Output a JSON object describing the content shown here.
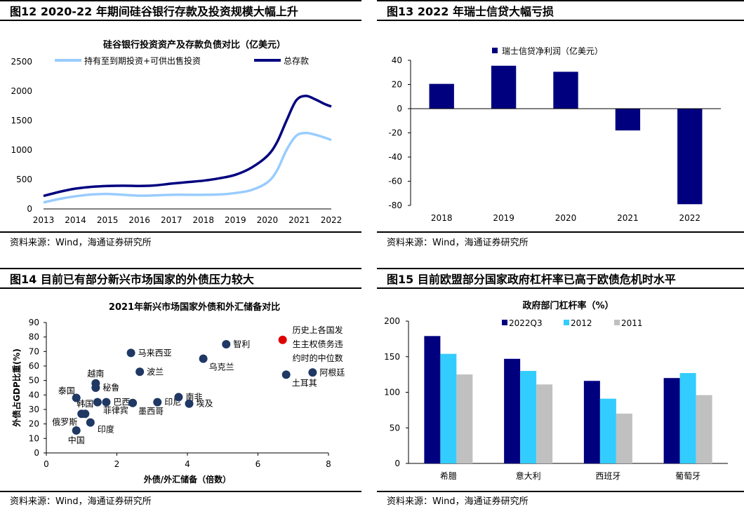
{
  "panels": [
    {
      "figure_title": "图12 2020-22 年期间硅谷银行存款及投资规模大幅上升",
      "source": "资料来源：Wind，海通证券研究所"
    },
    {
      "figure_title": "图13 2022 年瑞士信贷大幅亏损",
      "source": "资料来源：Wind，海通证券研究所"
    },
    {
      "figure_title": "图14 目前已有部分新兴市场国家的外债压力较大",
      "source": "资料来源：Wind，海通证券研究所"
    },
    {
      "figure_title": "图15 目前欧盟部分国家政府杠杆率已高于欧债危机时水平",
      "source": "资料来源：Wind，海通证券研究所"
    }
  ],
  "chart_data": [
    {
      "type": "line",
      "title": "硅谷银行投资资产及存款负债对比（亿美元）",
      "x": [
        2013,
        2014,
        2015,
        2016,
        2017,
        2018,
        2019,
        2020,
        2021,
        2022
      ],
      "xticks": [
        "2013",
        "2014",
        "2015",
        "2016",
        "2017",
        "2018",
        "2019",
        "2020",
        "2021",
        "2022"
      ],
      "ylim": [
        0,
        2500
      ],
      "yticks": [
        "0",
        "500",
        "1000",
        "1500",
        "2000",
        "2500"
      ],
      "series": [
        {
          "name": "持有至到期投资+可供出售投资",
          "color": "#99ccff",
          "points": [
            [
              2013,
              110
            ],
            [
              2013.5,
              170
            ],
            [
              2014,
              215
            ],
            [
              2014.5,
              245
            ],
            [
              2015,
              255
            ],
            [
              2015.5,
              240
            ],
            [
              2016,
              225
            ],
            [
              2016.5,
              230
            ],
            [
              2017,
              240
            ],
            [
              2017.5,
              240
            ],
            [
              2018,
              240
            ],
            [
              2018.5,
              245
            ],
            [
              2019,
              270
            ],
            [
              2019.5,
              320
            ],
            [
              2020,
              450
            ],
            [
              2020.3,
              650
            ],
            [
              2020.6,
              1000
            ],
            [
              2020.9,
              1240
            ],
            [
              2021.2,
              1290
            ],
            [
              2021.5,
              1260
            ],
            [
              2021.8,
              1210
            ],
            [
              2022,
              1170
            ]
          ]
        },
        {
          "name": "总存款",
          "color": "#00007f",
          "points": [
            [
              2013,
              220
            ],
            [
              2013.5,
              290
            ],
            [
              2014,
              345
            ],
            [
              2014.5,
              375
            ],
            [
              2015,
              390
            ],
            [
              2015.5,
              395
            ],
            [
              2016,
              390
            ],
            [
              2016.5,
              400
            ],
            [
              2017,
              430
            ],
            [
              2017.5,
              455
            ],
            [
              2018,
              480
            ],
            [
              2018.5,
              520
            ],
            [
              2019,
              580
            ],
            [
              2019.5,
              700
            ],
            [
              2020,
              900
            ],
            [
              2020.3,
              1130
            ],
            [
              2020.6,
              1500
            ],
            [
              2020.9,
              1840
            ],
            [
              2021.2,
              1920
            ],
            [
              2021.5,
              1860
            ],
            [
              2021.8,
              1780
            ],
            [
              2022,
              1740
            ]
          ]
        }
      ]
    },
    {
      "type": "bar",
      "title": "",
      "legend": "瑞士信贷净利润（亿美元）",
      "color": "#00007f",
      "categories": [
        "2018",
        "2019",
        "2020",
        "2021",
        "2022"
      ],
      "values": [
        20.5,
        35.5,
        30.5,
        -18,
        -79
      ],
      "ylim": [
        -80,
        40
      ],
      "yticks": [
        "40",
        "20",
        "0",
        "-20",
        "-40",
        "-60",
        "-80"
      ]
    },
    {
      "type": "scatter",
      "title": "2021年新兴市场国家外债和外汇储备对比",
      "xlabel": "外债/外汇储备（倍数）",
      "ylabel": "外债占GDP比重(%)",
      "xlim": [
        0,
        8
      ],
      "ylim": [
        0,
        90
      ],
      "xticks": [
        "0",
        "2",
        "4",
        "6",
        "8"
      ],
      "yticks": [
        "0",
        "10",
        "20",
        "30",
        "40",
        "50",
        "60",
        "70",
        "80",
        "90"
      ],
      "points": [
        {
          "label": "中国",
          "x": 0.85,
          "y": 15.5,
          "color": "#1f3864",
          "anchor": "below"
        },
        {
          "label": "俄罗斯",
          "x": 1.0,
          "y": 27,
          "color": "#1f3864",
          "anchor": "left-below"
        },
        {
          "label": "韩国",
          "x": 1.1,
          "y": 27,
          "color": "#1f3864",
          "anchor": "above"
        },
        {
          "label": "印度",
          "x": 1.25,
          "y": 21,
          "color": "#1f3864",
          "anchor": "right-below"
        },
        {
          "label": "泰国",
          "x": 0.85,
          "y": 38,
          "color": "#1f3864",
          "anchor": "above-left"
        },
        {
          "label": "菲律宾",
          "x": 1.45,
          "y": 35,
          "color": "#1f3864",
          "anchor": "below-right"
        },
        {
          "label": "越南",
          "x": 1.4,
          "y": 48,
          "color": "#1f3864",
          "anchor": "above"
        },
        {
          "label": "秘鲁",
          "x": 1.4,
          "y": 45,
          "color": "#1f3864",
          "anchor": "right"
        },
        {
          "label": "巴西",
          "x": 1.7,
          "y": 35,
          "color": "#1f3864",
          "anchor": "right"
        },
        {
          "label": "墨西哥",
          "x": 2.45,
          "y": 34.5,
          "color": "#1f3864",
          "anchor": "below-right"
        },
        {
          "label": "印尼",
          "x": 3.15,
          "y": 35,
          "color": "#1f3864",
          "anchor": "right"
        },
        {
          "label": "马来西亚",
          "x": 2.4,
          "y": 69,
          "color": "#1f3864",
          "anchor": "right"
        },
        {
          "label": "波兰",
          "x": 2.65,
          "y": 56,
          "color": "#1f3864",
          "anchor": "right"
        },
        {
          "label": "南非",
          "x": 3.75,
          "y": 38.5,
          "color": "#1f3864",
          "anchor": "right"
        },
        {
          "label": "埃及",
          "x": 4.05,
          "y": 34,
          "color": "#1f3864",
          "anchor": "right"
        },
        {
          "label": "乌克兰",
          "x": 4.45,
          "y": 65,
          "color": "#1f3864",
          "anchor": "below-right"
        },
        {
          "label": "智利",
          "x": 5.1,
          "y": 75,
          "color": "#1f3864",
          "anchor": "right"
        },
        {
          "label": "阿根廷",
          "x": 7.55,
          "y": 55.5,
          "color": "#1f3864",
          "anchor": "right"
        },
        {
          "label": "土耳其",
          "x": 6.8,
          "y": 54,
          "color": "#1f3864",
          "anchor": "below-right"
        },
        {
          "label": "历史上各国发生主权债务违约时的中位数",
          "x": 6.7,
          "y": 78,
          "color": "#e00000",
          "anchor": "annotation"
        }
      ],
      "annotation_lines": [
        "历史上各国发",
        "生主权债务违",
        "约时的中位数"
      ]
    },
    {
      "type": "bar",
      "title": "政府部门杠杆率（%）",
      "categories": [
        "希腊",
        "意大利",
        "西班牙",
        "葡萄牙"
      ],
      "ylim": [
        0,
        200
      ],
      "yticks": [
        "0",
        "50",
        "100",
        "150",
        "200"
      ],
      "series": [
        {
          "name": "2022Q3",
          "color": "#00007f",
          "values": [
            179,
            147,
            116,
            120
          ]
        },
        {
          "name": "2012",
          "color": "#33ccff",
          "values": [
            154,
            130,
            91,
            127
          ]
        },
        {
          "name": "2011",
          "color": "#c0c0c0",
          "values": [
            125,
            111,
            70,
            96
          ]
        }
      ]
    }
  ]
}
